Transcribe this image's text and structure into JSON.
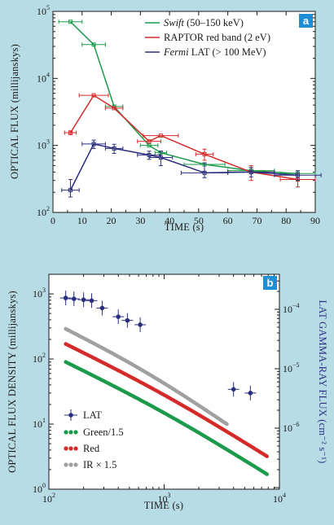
{
  "colors": {
    "background": "#b8dce6",
    "green": "#1a9a4a",
    "red": "#d42a2a",
    "blue": "#2a2e7e",
    "grey": "#a0a0a0",
    "badge": "#1e8fd6"
  },
  "chart_data": [
    {
      "type": "line",
      "panel_label": "a",
      "xlabel": "TIME (s)",
      "ylabel": "OPTICAL FLUX (millijanskys)",
      "xlim": [
        0,
        90
      ],
      "ylim": [
        100,
        100000
      ],
      "yscale": "log",
      "x_ticks": [
        "0",
        "10",
        "20",
        "30",
        "40",
        "50",
        "60",
        "70",
        "80",
        "90"
      ],
      "y_ticks": [
        {
          "base": "10",
          "exp": "2"
        },
        {
          "base": "10",
          "exp": "3"
        },
        {
          "base": "10",
          "exp": "4"
        },
        {
          "base": "10",
          "exp": "5"
        }
      ],
      "legend_position": "top-right",
      "series": [
        {
          "name_italic": "Swift",
          "name_rest": " (50–150 keV)",
          "color": "green",
          "points": [
            {
              "x": 6,
              "y": 70000,
              "xerr": 4
            },
            {
              "x": 14,
              "y": 32000,
              "xerr": 4
            },
            {
              "x": 21,
              "y": 3800,
              "xerr": 3
            },
            {
              "x": 33,
              "y": 1000,
              "xerr": 3
            },
            {
              "x": 37,
              "y": 780,
              "xerr": 2
            },
            {
              "x": 52,
              "y": 520,
              "xerr": 7
            },
            {
              "x": 68,
              "y": 420,
              "xerr": 8
            },
            {
              "x": 84,
              "y": 380,
              "xerr": 6
            }
          ]
        },
        {
          "name_italic": "",
          "name_rest": "RAPTOR red band (2 eV)",
          "color": "red",
          "points": [
            {
              "x": 6,
              "y": 1550,
              "xerr": 2,
              "yerr": [
                1450,
                1650
              ]
            },
            {
              "x": 14,
              "y": 5600,
              "xerr": 5
            },
            {
              "x": 21,
              "y": 3600,
              "xerr": 3
            },
            {
              "x": 33,
              "y": 1150,
              "xerr": 4
            },
            {
              "x": 37,
              "y": 1400,
              "xerr": 6
            },
            {
              "x": 52,
              "y": 740,
              "xerr": 3,
              "yerr": [
                600,
                880
              ]
            },
            {
              "x": 68,
              "y": 400,
              "xerr": 8,
              "yerr": [
                300,
                500
              ]
            },
            {
              "x": 84,
              "y": 310,
              "xerr": 6,
              "yerr": [
                240,
                380
              ]
            }
          ]
        },
        {
          "name_italic": "Fermi",
          "name_rest": " LAT (> 100 MeV)",
          "color": "blue",
          "points": [
            {
              "x": 6,
              "y": 215,
              "xerr": 3,
              "yerr": [
                170,
                310
              ]
            },
            {
              "x": 14,
              "y": 1050,
              "xerr": 4,
              "yerr": [
                900,
                1200
              ]
            },
            {
              "x": 21,
              "y": 900,
              "xerr": 3,
              "yerr": [
                760,
                1040
              ]
            },
            {
              "x": 33,
              "y": 720,
              "xerr": 4,
              "yerr": [
                620,
                820
              ]
            },
            {
              "x": 37,
              "y": 660,
              "xerr": 4,
              "yerr": [
                500,
                820
              ]
            },
            {
              "x": 52,
              "y": 390,
              "xerr": 8,
              "yerr": [
                330,
                550
              ]
            },
            {
              "x": 68,
              "y": 400,
              "xerr": 8,
              "yerr": [
                340,
                470
              ]
            },
            {
              "x": 84,
              "y": 360,
              "xerr": 8,
              "yerr": [
                300,
                420
              ]
            }
          ]
        }
      ]
    },
    {
      "type": "scatter",
      "panel_label": "b",
      "xlabel": "TIME (s)",
      "ylabel": "OPTICAL FLUX DENSITY (millijanskys)",
      "ylabel_right": "LAT GAMMA-RAY FLUX (cm⁻² s⁻¹)",
      "xscale": "log",
      "yscale": "log",
      "xlim": [
        100,
        10000
      ],
      "ylim": [
        1,
        2000
      ],
      "x_ticks": [
        {
          "base": "10",
          "exp": "2"
        },
        {
          "base": "10",
          "exp": "3"
        },
        {
          "base": "10",
          "exp": "4"
        }
      ],
      "y_ticks": [
        {
          "base": "10",
          "exp": "0"
        },
        {
          "base": "10",
          "exp": "1"
        },
        {
          "base": "10",
          "exp": "2"
        },
        {
          "base": "10",
          "exp": "3"
        }
      ],
      "y_ticks_right": [
        {
          "base": "10",
          "exp": "−6"
        },
        {
          "base": "10",
          "exp": "−5"
        },
        {
          "base": "10",
          "exp": "−4"
        }
      ],
      "legend_position": "bottom-left",
      "series": [
        {
          "name": "LAT",
          "color": "blue",
          "axis": "right",
          "points": [
            {
              "x": 140,
              "y": 0.000155
            },
            {
              "x": 165,
              "y": 0.00015
            },
            {
              "x": 200,
              "y": 0.000145
            },
            {
              "x": 235,
              "y": 0.00014
            },
            {
              "x": 290,
              "y": 0.000105
            },
            {
              "x": 400,
              "y": 7.5e-05
            },
            {
              "x": 480,
              "y": 6.5e-05
            },
            {
              "x": 620,
              "y": 5.5e-05
            },
            {
              "x": 4000,
              "y": 4.5e-06
            },
            {
              "x": 5600,
              "y": 3.9e-06
            }
          ]
        },
        {
          "name": "Green/1.5",
          "color": "green",
          "t_start": 140,
          "t_end": 7800,
          "y_start": 90,
          "y_end": 1.7
        },
        {
          "name": "Red",
          "color": "red",
          "t_start": 140,
          "t_end": 7800,
          "y_start": 170,
          "y_end": 3.2
        },
        {
          "name": "IR × 1.5",
          "color": "grey",
          "t_start": 140,
          "t_end": 3500,
          "y_start": 290,
          "y_end": 10
        }
      ]
    }
  ]
}
